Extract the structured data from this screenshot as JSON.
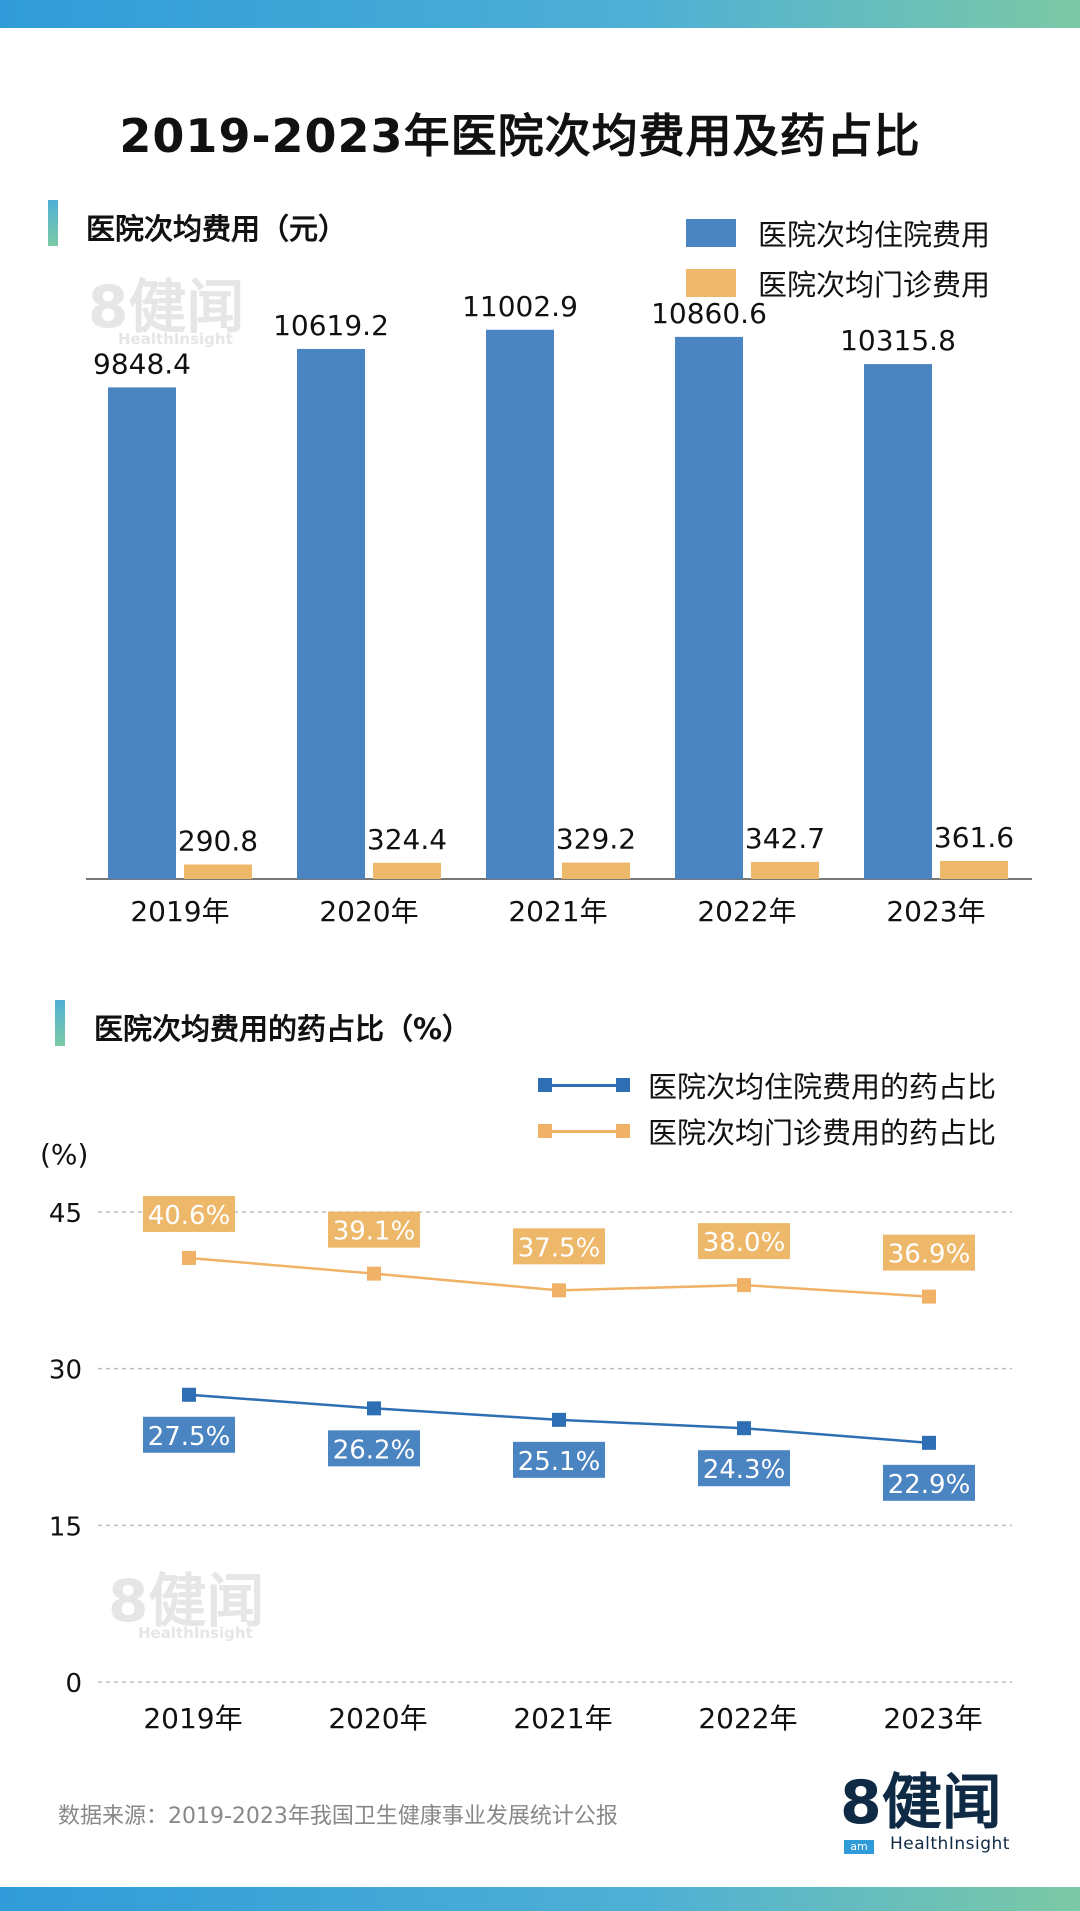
{
  "title": "2019-2023年医院次均费用及药占比",
  "source": "数据来源：2019-2023年我国卫生健康事业发展统计公报",
  "watermark": {
    "big": "8健闻",
    "small": "HealthInsight"
  },
  "logo": {
    "brand": "8健闻",
    "sub": "HealthInsight",
    "badge": "am"
  },
  "colors": {
    "inpatient": "#4a84c1",
    "outpatient": "#edb86a",
    "line_inpatient": "#2e6fb3",
    "line_outpatient": "#efb266"
  },
  "chart_data": [
    {
      "type": "bar",
      "title": "医院次均费用（元）",
      "categories": [
        "2019年",
        "2020年",
        "2021年",
        "2022年",
        "2023年"
      ],
      "series": [
        {
          "name": "医院次均住院费用",
          "values": [
            9848.4,
            10619.2,
            11002.9,
            10860.6,
            10315.8
          ],
          "labels": [
            "9848.4",
            "10619.2",
            "11002.9",
            "10860.6",
            "10315.8"
          ]
        },
        {
          "name": "医院次均门诊费用",
          "values": [
            290.8,
            324.4,
            329.2,
            342.7,
            361.6
          ],
          "labels": [
            "290.8",
            "324.4",
            "329.2",
            "342.7",
            "361.6"
          ]
        }
      ],
      "ylim": [
        0,
        11800
      ],
      "grid": false,
      "legend": "top-right"
    },
    {
      "type": "line",
      "title": "医院次均费用的药占比（%）",
      "ylabel": "(%)",
      "categories": [
        "2019年",
        "2020年",
        "2021年",
        "2022年",
        "2023年"
      ],
      "yticks": [
        "0",
        "15",
        "30",
        "45"
      ],
      "ytick_values": [
        0,
        15,
        30,
        45
      ],
      "ylim": [
        0,
        45
      ],
      "grid": true,
      "legend": "top-right",
      "series": [
        {
          "name": "医院次均住院费用的药占比",
          "values": [
            27.5,
            26.2,
            25.1,
            24.3,
            22.9
          ],
          "labels": [
            "27.5%",
            "26.2%",
            "25.1%",
            "24.3%",
            "22.9%"
          ]
        },
        {
          "name": "医院次均门诊费用的药占比",
          "values": [
            40.6,
            39.1,
            37.5,
            38.0,
            36.9
          ],
          "labels": [
            "40.6%",
            "39.1%",
            "37.5%",
            "38.0%",
            "36.9%"
          ]
        }
      ]
    }
  ]
}
